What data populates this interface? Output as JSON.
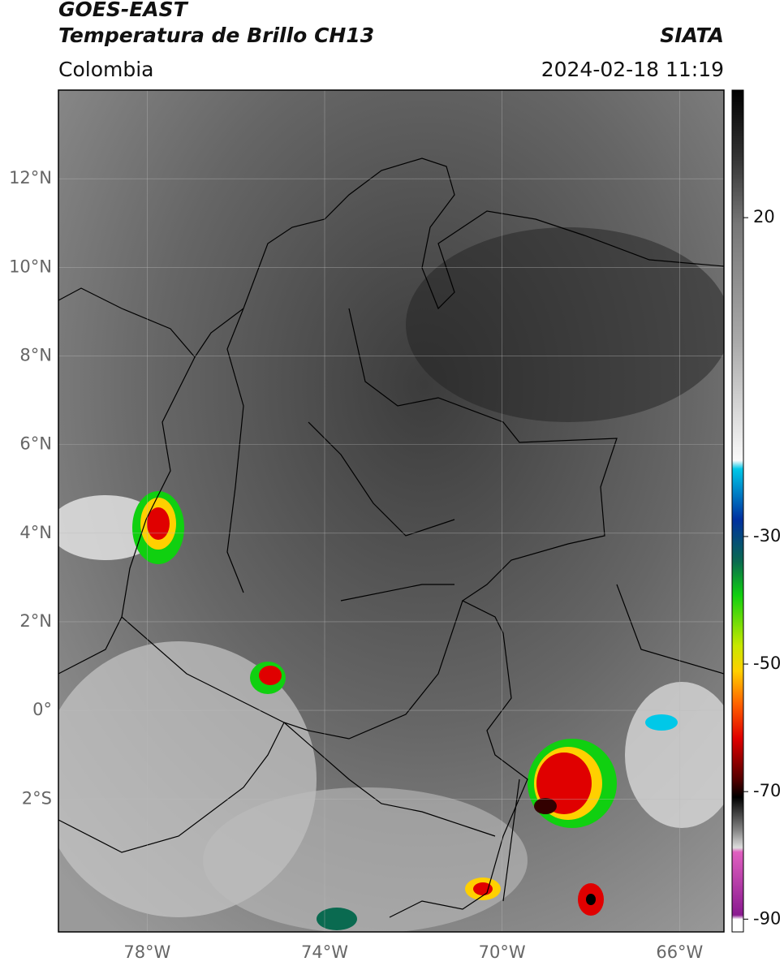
{
  "header": {
    "satellite": "GOES-EAST",
    "product": "Temperatura de Brillo CH13",
    "region": "Colombia",
    "source": "SIATA",
    "datetime": "2024-02-18 11:19"
  },
  "map": {
    "lonlim": [
      -80,
      -65
    ],
    "latlim": [
      -5,
      14
    ],
    "lat_ticks": [
      {
        "value": 12,
        "label": "12°N"
      },
      {
        "value": 10,
        "label": "10°N"
      },
      {
        "value": 8,
        "label": "8°N"
      },
      {
        "value": 6,
        "label": "6°N"
      },
      {
        "value": 4,
        "label": "4°N"
      },
      {
        "value": 2,
        "label": "2°N"
      },
      {
        "value": 0,
        "label": "0°"
      },
      {
        "value": -2,
        "label": "2°S"
      }
    ],
    "lon_ticks": [
      {
        "value": -78,
        "label": "78°W"
      },
      {
        "value": -74,
        "label": "74°W"
      },
      {
        "value": -70,
        "label": "70°W"
      },
      {
        "value": -66,
        "label": "66°W"
      }
    ]
  },
  "colorbar": {
    "lim": [
      -92,
      40
    ],
    "ticks": [
      20,
      -30,
      -50,
      -70,
      -90
    ]
  }
}
